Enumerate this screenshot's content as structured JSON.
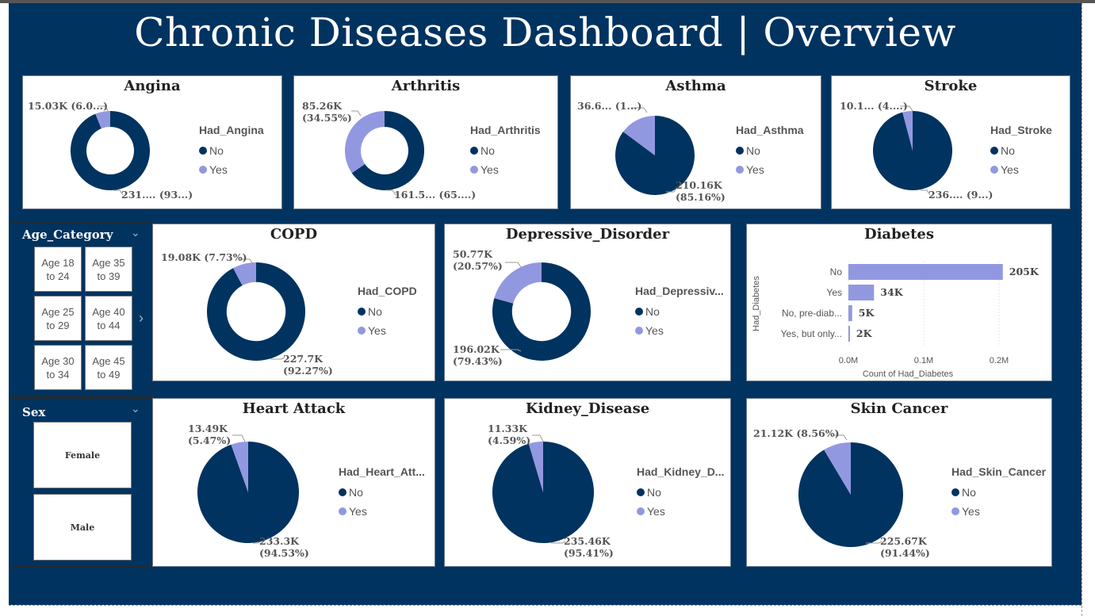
{
  "dashboard_title": "Chronic Diseases Dashboard | Overview",
  "colors": {
    "no": "#003360",
    "yes": "#9298e0",
    "background": "#003360"
  },
  "legend_labels": {
    "no": "No",
    "yes": "Yes"
  },
  "pies": [
    {
      "id": "angina",
      "title": "Angina",
      "legend_title": "Had_Angina",
      "kind": "donut",
      "no_value": 231,
      "yes_value": 15.03,
      "no_label": [
        "231.... (93...)"
      ],
      "yes_label": [
        "15.03K (6.0...)"
      ]
    },
    {
      "id": "arthritis",
      "title": "Arthritis",
      "legend_title": "Had_Arthritis",
      "kind": "donut",
      "no_value": 161.5,
      "yes_value": 85.26,
      "no_label": [
        "161.5... (65....)"
      ],
      "yes_label": [
        "85.26K",
        "(34.55%)"
      ]
    },
    {
      "id": "asthma",
      "title": "Asthma",
      "legend_title": "Had_Asthma",
      "kind": "pie",
      "no_value": 210.16,
      "yes_value": 36.6,
      "no_label": [
        "210.16K",
        "(85.16%)"
      ],
      "yes_label": [
        "36.6... (1...)"
      ]
    },
    {
      "id": "stroke",
      "title": "Stroke",
      "legend_title": "Had_Stroke",
      "kind": "pie",
      "no_value": 236,
      "yes_value": 10.1,
      "no_label": [
        "236.... (9...)"
      ],
      "yes_label": [
        "10.1... (4....)"
      ]
    },
    {
      "id": "copd",
      "title": "COPD",
      "legend_title": "Had_COPD",
      "kind": "donut",
      "no_value": 227.7,
      "yes_value": 19.08,
      "no_label": [
        "227.7K",
        "(92.27%)"
      ],
      "yes_label": [
        "19.08K (7.73%)"
      ]
    },
    {
      "id": "depressive",
      "title": "Depressive_Disorder",
      "legend_title": "Had_Depressiv...",
      "kind": "donut",
      "no_value": 196.02,
      "yes_value": 50.77,
      "no_label": [
        "196.02K",
        "(79.43%)"
      ],
      "yes_label": [
        "50.77K",
        "(20.57%)"
      ]
    },
    {
      "id": "heart",
      "title": "Heart Attack",
      "legend_title": "Had_Heart_Att...",
      "kind": "pie",
      "no_value": 233.3,
      "yes_value": 13.49,
      "no_label": [
        "233.3K",
        "(94.53%)"
      ],
      "yes_label": [
        "13.49K",
        "(5.47%)"
      ]
    },
    {
      "id": "kidney",
      "title": "Kidney_Disease",
      "legend_title": "Had_Kidney_D...",
      "kind": "pie",
      "no_value": 235.46,
      "yes_value": 11.33,
      "no_label": [
        "235.46K",
        "(95.41%)"
      ],
      "yes_label": [
        "11.33K",
        "(4.59%)"
      ]
    },
    {
      "id": "skin",
      "title": "Skin Cancer",
      "legend_title": "Had_Skin_Cancer",
      "kind": "pie",
      "no_value": 225.67,
      "yes_value": 21.12,
      "no_label": [
        "225.67K",
        "(91.44%)"
      ],
      "yes_label": [
        "21.12K (8.56%)"
      ]
    }
  ],
  "chart_data": {
    "type": "bar",
    "title": "Diabetes",
    "categories": [
      "No",
      "Yes",
      "No, pre-diab...",
      "Yes, but only..."
    ],
    "values": [
      205000,
      34000,
      5000,
      2000
    ],
    "value_labels": [
      "205K",
      "34K",
      "5K",
      "2K"
    ],
    "xlabel": "Count of Had_Diabetes",
    "ylabel": "Had_Diabetes",
    "xticks": [
      "0.0M",
      "0.1M",
      "0.2M"
    ],
    "xlim": [
      0,
      200000
    ]
  },
  "age_slicer": {
    "title": "Age_Category",
    "tiles": [
      [
        "Age 18",
        "to 24"
      ],
      [
        "Age 35",
        "to 39"
      ],
      [
        "Age 25",
        "to 29"
      ],
      [
        "Age 40",
        "to 44"
      ],
      [
        "Age 30",
        "to 34"
      ],
      [
        "Age 45",
        "to 49"
      ]
    ]
  },
  "sex_slicer": {
    "title": "Sex",
    "options": [
      "Female",
      "Male"
    ]
  }
}
